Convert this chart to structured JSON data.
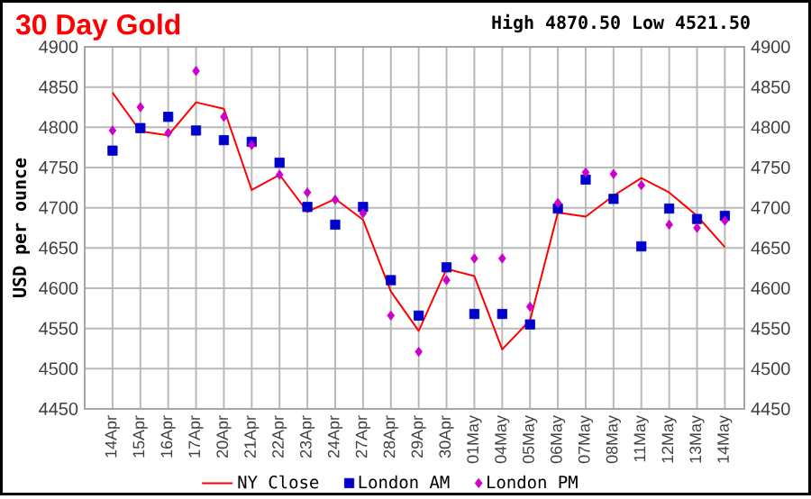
{
  "chart_data": {
    "type": "line",
    "title": "30 Day Gold",
    "subtitle": "High 4870.50 Low 4521.50",
    "ylabel": "USD per ounce",
    "categories": [
      "14Apr",
      "15Apr",
      "16Apr",
      "17Apr",
      "20Apr",
      "21Apr",
      "22Apr",
      "23Apr",
      "24Apr",
      "27Apr",
      "28Apr",
      "29Apr",
      "30Apr",
      "01May",
      "04May",
      "05May",
      "06May",
      "07May",
      "08May",
      "11May",
      "12May",
      "13May",
      "14May"
    ],
    "series": [
      {
        "name": "NY Close",
        "color": "#ff0000",
        "marker": "none",
        "line_style": "solid",
        "values": [
          4843,
          4795,
          4790,
          4831,
          4823,
          4722,
          4741,
          4695,
          4711,
          4685,
          4596,
          4547,
          4624,
          4615,
          4524,
          4560,
          4694,
          4689,
          4715,
          4737,
          4719,
          4690,
          4651
        ]
      },
      {
        "name": "London AM",
        "type": "scatter",
        "color": "#0000cc",
        "marker": "square",
        "values": [
          4771,
          4799,
          4813,
          4796,
          4784,
          4782,
          4756,
          4701,
          4679,
          4701,
          4610,
          4566,
          4626,
          4568,
          4568,
          4555,
          4699,
          4735,
          4711,
          4652,
          4699,
          4686,
          4690
        ]
      },
      {
        "name": "London PM",
        "type": "scatter",
        "color": "#cc00cc",
        "marker": "diamond",
        "values": [
          4796,
          4825,
          4793,
          4870,
          4813,
          4778,
          4741,
          4719,
          4710,
          4693,
          4566,
          4521,
          4610,
          4637,
          4637,
          4577,
          4706,
          4744,
          4742,
          4728,
          4679,
          4675,
          4684
        ]
      }
    ],
    "ylim": [
      4450,
      4900
    ],
    "yticks": [
      4450,
      4500,
      4550,
      4600,
      4650,
      4700,
      4750,
      4800,
      4850,
      4900
    ],
    "y2lim": [
      4450,
      4900
    ],
    "y2ticks": [
      4450,
      4500,
      4550,
      4600,
      4650,
      4700,
      4750,
      4800,
      4850,
      4900
    ],
    "grid": true,
    "legend": "bottom"
  }
}
